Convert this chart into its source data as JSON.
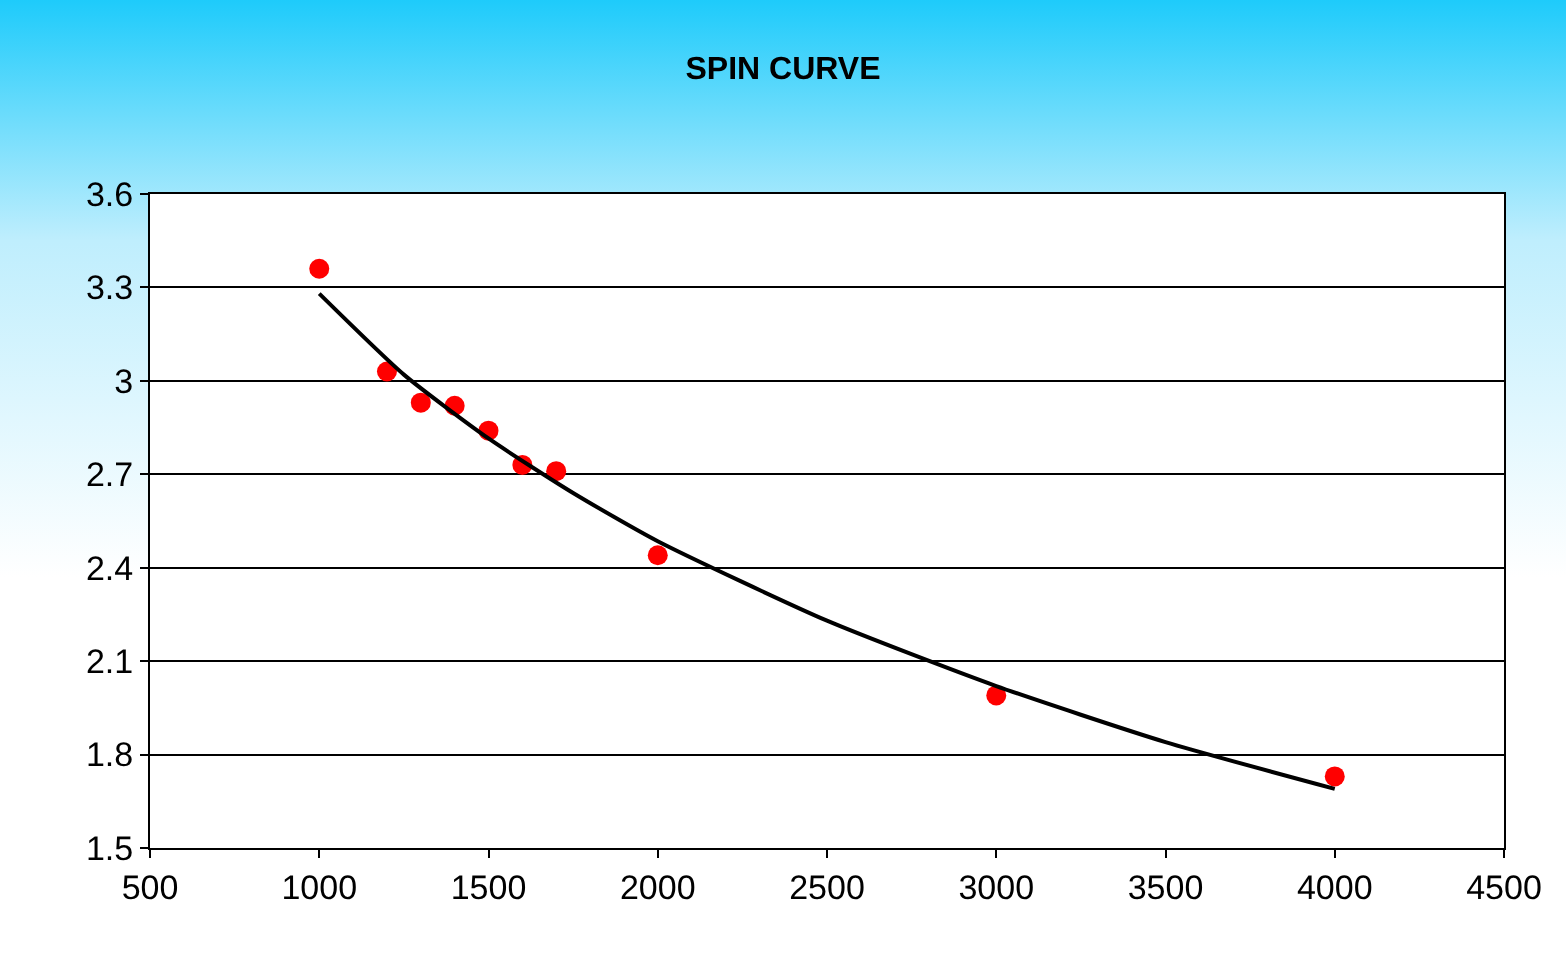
{
  "chart_data": {
    "type": "scatter",
    "title": "SPIN CURVE",
    "x": [
      1000,
      1200,
      1300,
      1400,
      1500,
      1600,
      1700,
      2000,
      3000,
      4000
    ],
    "series": [
      {
        "type": "scatter",
        "color": "#ff0000",
        "marker": "circle",
        "values": [
          3.36,
          3.03,
          2.93,
          2.92,
          2.84,
          2.73,
          2.71,
          2.44,
          1.99,
          1.73
        ]
      },
      {
        "type": "line",
        "color": "#000000",
        "marker": "none",
        "x": [
          1000,
          1250,
          1500,
          1750,
          2000,
          2500,
          3000,
          3500,
          4000
        ],
        "values": [
          3.28,
          3.02,
          2.815,
          2.64,
          2.485,
          2.23,
          2.02,
          1.84,
          1.69
        ]
      }
    ],
    "xlim": [
      500,
      4500
    ],
    "xticks": [
      500,
      1000,
      1500,
      2000,
      2500,
      3000,
      3500,
      4000,
      4500
    ],
    "ylim": [
      1.5,
      3.6
    ],
    "yticks": [
      1.5,
      1.8,
      2.1,
      2.4,
      2.7,
      3,
      3.3,
      3.6
    ],
    "grid": "y"
  }
}
